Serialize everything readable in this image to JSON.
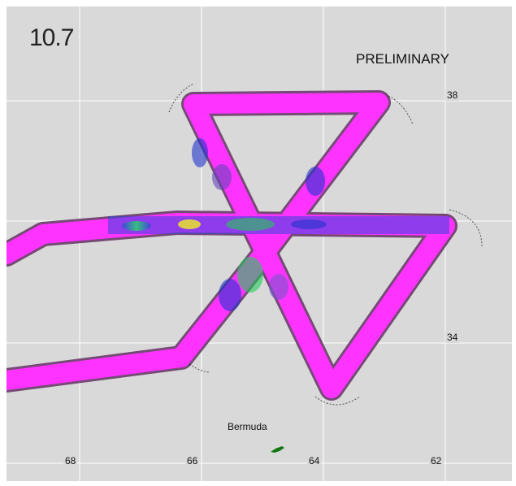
{
  "frame_label": "10.7",
  "status_tag": "PRELIMINARY",
  "place": "Bermuda",
  "lat_ticks": [
    "38",
    "34"
  ],
  "lon_ticks": [
    "68",
    "66",
    "64",
    "62"
  ],
  "colors": {
    "background": "#d9d9d9",
    "grid": "#ffffff",
    "swath": "#ff33ff",
    "swath_edge": "#222222",
    "anomaly_blue": "#2233cc",
    "anomaly_green": "#22cc55",
    "anomaly_yellow": "#eeee22",
    "land": "#117711"
  }
}
